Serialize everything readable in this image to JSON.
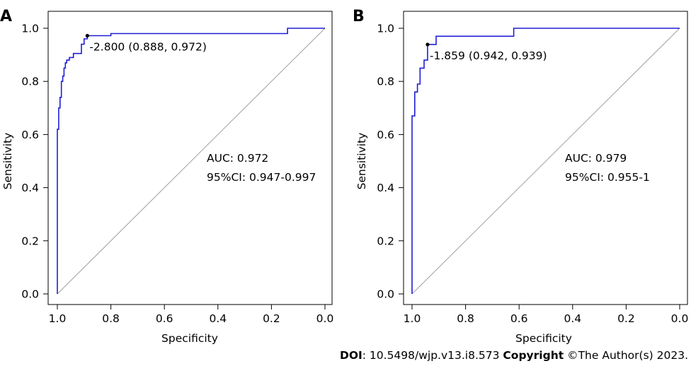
{
  "chart_data": [
    {
      "panel": "A",
      "type": "line",
      "xlabel": "Specificity",
      "ylabel": "Sensitivity",
      "xlim": [
        1.0,
        0.0
      ],
      "ylim": [
        0.0,
        1.0
      ],
      "x_reversed": true,
      "xticks": [
        "1.0",
        "0.8",
        "0.6",
        "0.4",
        "0.2",
        "0.0"
      ],
      "yticks": [
        "0.0",
        "0.2",
        "0.4",
        "0.6",
        "0.8",
        "1.0"
      ],
      "series_color": "#1f1fd6",
      "series": [
        {
          "x": [
            1.0,
            1.0,
            0.995,
            0.995,
            0.99,
            0.99,
            0.985,
            0.985,
            0.98,
            0.98,
            0.975,
            0.975,
            0.97,
            0.97,
            0.965,
            0.965,
            0.955,
            0.955,
            0.94,
            0.94,
            0.91,
            0.91,
            0.9,
            0.9,
            0.888,
            0.888,
            0.8,
            0.8,
            0.14,
            0.14,
            0.0
          ],
          "y": [
            0.0,
            0.62,
            0.62,
            0.7,
            0.7,
            0.74,
            0.74,
            0.8,
            0.8,
            0.82,
            0.82,
            0.85,
            0.85,
            0.87,
            0.87,
            0.88,
            0.88,
            0.89,
            0.89,
            0.905,
            0.905,
            0.94,
            0.94,
            0.96,
            0.96,
            0.972,
            0.972,
            0.98,
            0.98,
            1.0,
            1.0
          ]
        }
      ],
      "reference_line": [
        [
          1.0,
          0.0
        ],
        [
          0.0,
          1.0
        ]
      ],
      "cutoff_point": {
        "x": 0.888,
        "y": 0.972
      },
      "cutoff_label": "-2.800 (0.888, 0.972)",
      "auc_label": "AUC: 0.972",
      "ci_label": "95%CI: 0.947-0.997"
    },
    {
      "panel": "B",
      "type": "line",
      "xlabel": "Specificity",
      "ylabel": "Sensitivity",
      "xlim": [
        1.0,
        0.0
      ],
      "ylim": [
        0.0,
        1.0
      ],
      "x_reversed": true,
      "xticks": [
        "1.0",
        "0.8",
        "0.6",
        "0.4",
        "0.2",
        "0.0"
      ],
      "yticks": [
        "0.0",
        "0.2",
        "0.4",
        "0.6",
        "0.8",
        "1.0"
      ],
      "series_color": "#1f1fd6",
      "series": [
        {
          "x": [
            1.0,
            1.0,
            0.99,
            0.99,
            0.98,
            0.98,
            0.97,
            0.97,
            0.955,
            0.955,
            0.942,
            0.942,
            0.91,
            0.91,
            0.62,
            0.62,
            0.0
          ],
          "y": [
            0.0,
            0.67,
            0.67,
            0.76,
            0.76,
            0.79,
            0.79,
            0.85,
            0.85,
            0.88,
            0.88,
            0.939,
            0.939,
            0.97,
            0.97,
            1.0,
            1.0
          ]
        }
      ],
      "reference_line": [
        [
          1.0,
          0.0
        ],
        [
          0.0,
          1.0
        ]
      ],
      "cutoff_point": {
        "x": 0.942,
        "y": 0.939
      },
      "cutoff_label": "-1.859 (0.942, 0.939)",
      "auc_label": "AUC: 0.979",
      "ci_label": "95%CI: 0.955-1"
    }
  ],
  "footer": {
    "doi_label": "DOI",
    "doi_value": ": 10.5498/wjp.v13.i8.573 ",
    "copyright_label": "Copyright",
    "copyright_value": " ©The Author(s) 2023."
  }
}
